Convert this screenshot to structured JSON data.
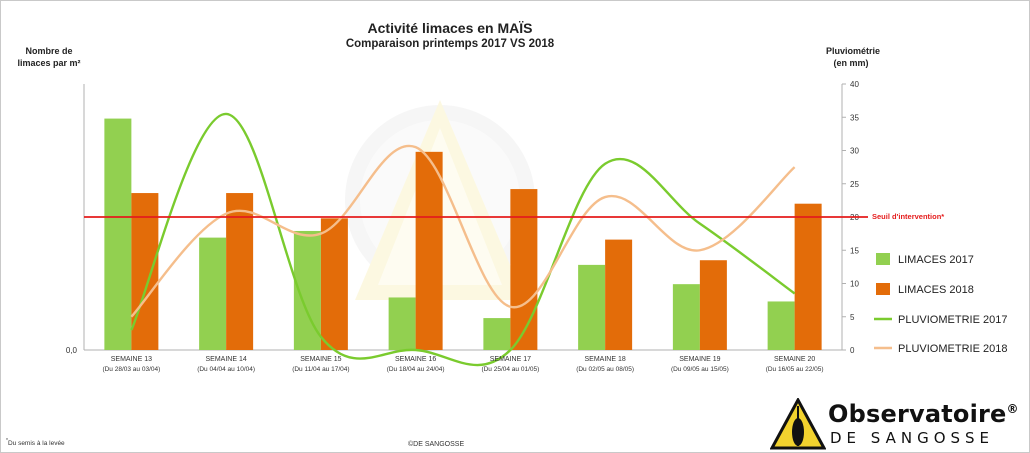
{
  "title": "Activité limaces en MAÏS",
  "subtitle": "Comparaison printemps 2017 VS 2018",
  "left_axis_title_line1": "Nombre de",
  "left_axis_title_line2": "limaces par m²",
  "right_axis_title_line1": "Pluviométrie",
  "right_axis_title_line2": "(en mm)",
  "left_axis_zero_label": "0,0",
  "footnote": "Du semis à la levée",
  "footnote_mark": "*",
  "credit": "©DE SANGOSSE",
  "logo": {
    "name": "Observatoire",
    "mark": "®",
    "sub": "DE SANGOSSE"
  },
  "colors": {
    "limaces_2017": "#92d050",
    "limaces_2018": "#e36c09",
    "pluvio_2017": "#7acb2e",
    "pluvio_2018": "#f5be8c",
    "threshold": "#e51c1c"
  },
  "chart_data": {
    "type": "bar",
    "categories": [
      "SEMAINE 13",
      "SEMAINE 14",
      "SEMAINE 15",
      "SEMAINE 16",
      "SEMAINE 17",
      "SEMAINE 18",
      "SEMAINE 19",
      "SEMAINE 20"
    ],
    "category_subtitles": [
      "(Du 28/03 au 03/04)",
      "(Du 04/04 au 10/04)",
      "(Du 11/04 au 17/04)",
      "(Du 18/04 au 24/04)",
      "(Du 25/04 au 01/05)",
      "(Du 02/05 au 08/05)",
      "(Du 09/05 au 15/05)",
      "(Du 16/05 au 22/05)"
    ],
    "series": [
      {
        "name": "LIMACES 2017",
        "kind": "bar",
        "axis": "left",
        "values": [
          34.8,
          16.9,
          17.9,
          7.9,
          4.8,
          12.8,
          9.9,
          7.3
        ]
      },
      {
        "name": "LIMACES 2018",
        "kind": "bar",
        "axis": "left",
        "values": [
          23.6,
          23.6,
          19.8,
          29.8,
          24.2,
          16.6,
          13.5,
          22.0
        ]
      },
      {
        "name": "PLUVIOMETRIE 2017",
        "kind": "line",
        "axis": "right",
        "values": [
          3,
          35.5,
          2,
          0,
          0,
          28,
          19,
          8.5
        ]
      },
      {
        "name": "PLUVIOMETRIE 2018",
        "kind": "line",
        "axis": "right",
        "values": [
          5,
          20.5,
          17.5,
          30.5,
          6.5,
          23,
          15,
          27.5
        ]
      }
    ],
    "threshold": {
      "label": "Seuil d'intervention*",
      "value": 20
    },
    "right_axis": {
      "min": 0,
      "max": 40,
      "ticks": [
        0,
        5,
        10,
        15,
        20,
        25,
        30,
        35,
        40
      ]
    },
    "left_axis": {
      "min": 0,
      "max": 40,
      "ticks_shown": [
        "0,0"
      ]
    },
    "legend_position": "right"
  }
}
